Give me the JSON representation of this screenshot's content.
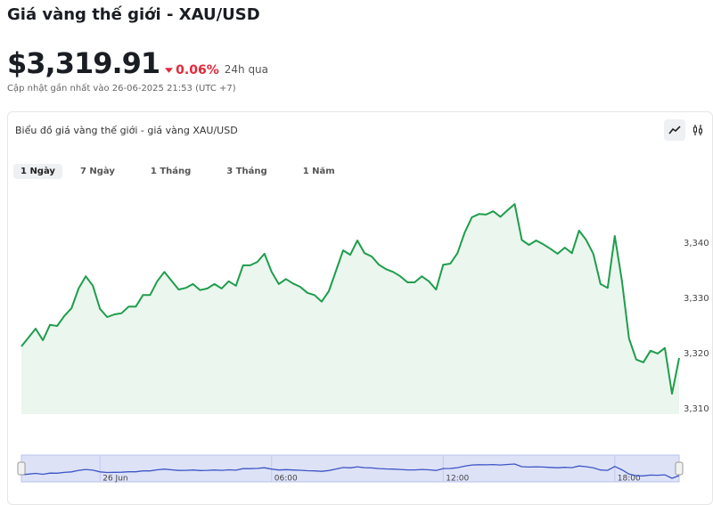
{
  "header": {
    "title": "Giá vàng thế giới - XAU/USD",
    "price": "$3,319.91",
    "change": "0.06%",
    "period": "24h qua",
    "updated": "Cập nhật gần nhất vào 26-06-2025 21:53 (UTC +7)"
  },
  "card": {
    "title": "Biểu đồ giá vàng thế giới - giá vàng XAU/USD",
    "tabs": [
      "1 Ngày",
      "7 Ngày",
      "1 Tháng",
      "3 Tháng",
      "1 Năm"
    ]
  },
  "chart_data": {
    "type": "area",
    "color": "#1f9d4c",
    "fill": "#eaf6ee",
    "navigator_color": "#3d55c4",
    "navigator_fill": "#dde2f7",
    "grid": false,
    "x": [
      -2.75,
      -2.5,
      -2.25,
      -2,
      -1.75,
      -1.5,
      -1.25,
      -1,
      -0.75,
      -0.5,
      -0.25,
      0,
      0.25,
      0.5,
      0.75,
      1,
      1.25,
      1.5,
      1.75,
      2,
      2.25,
      2.5,
      2.75,
      3,
      3.25,
      3.5,
      3.75,
      4,
      4.25,
      4.5,
      4.75,
      5,
      5.25,
      5.5,
      5.75,
      6,
      6.25,
      6.5,
      6.75,
      7,
      7.25,
      7.5,
      7.75,
      8,
      8.25,
      8.5,
      8.75,
      9,
      9.25,
      9.5,
      9.75,
      10,
      10.25,
      10.5,
      10.75,
      11,
      11.25,
      11.5,
      11.75,
      12,
      12.25,
      12.5,
      12.75,
      13,
      13.25,
      13.5,
      13.75,
      14,
      14.25,
      14.5,
      14.75,
      15,
      15.25,
      15.5,
      15.75,
      16,
      16.25,
      16.5,
      16.75,
      17,
      17.25,
      17.5,
      17.75,
      18,
      18.25,
      18.5,
      18.75,
      19,
      19.25,
      19.5,
      19.75,
      20,
      20.25
    ],
    "values": [
      3321.3,
      3322.9,
      3324.5,
      3322.4,
      3325.2,
      3325.0,
      3326.8,
      3328.2,
      3331.8,
      3334.0,
      3332.3,
      3328.1,
      3326.6,
      3327.1,
      3327.3,
      3328.5,
      3328.5,
      3330.6,
      3330.6,
      3333.1,
      3334.8,
      3333.2,
      3331.6,
      3331.9,
      3332.6,
      3331.5,
      3331.8,
      3332.6,
      3331.8,
      3333.1,
      3332.3,
      3336.0,
      3336.0,
      3336.6,
      3338.1,
      3334.8,
      3332.6,
      3333.5,
      3332.7,
      3332.1,
      3331.0,
      3330.6,
      3329.4,
      3331.3,
      3335.0,
      3338.7,
      3337.9,
      3340.5,
      3338.2,
      3337.6,
      3336.1,
      3335.3,
      3334.8,
      3334.0,
      3332.9,
      3332.9,
      3334.0,
      3333.1,
      3331.6,
      3336.1,
      3336.3,
      3338.2,
      3341.9,
      3344.7,
      3345.3,
      3345.2,
      3345.8,
      3344.8,
      3346.0,
      3347.1,
      3340.6,
      3339.7,
      3340.5,
      3339.8,
      3339.0,
      3338.1,
      3339.2,
      3338.2,
      3342.3,
      3340.6,
      3338.1,
      3332.6,
      3331.9,
      3341.3,
      3333.2,
      3322.7,
      3318.9,
      3318.4,
      3320.5,
      3320.0,
      3321.0,
      3312.7,
      3319.2
    ],
    "xlim": [
      -2.75,
      20.25
    ],
    "ylim": [
      3309,
      3351
    ],
    "yticks": [
      {
        "value": 3310,
        "label": "3,310"
      },
      {
        "value": 3320,
        "label": "3,320"
      },
      {
        "value": 3330,
        "label": "3,330"
      },
      {
        "value": 3340,
        "label": "3,340"
      }
    ],
    "xticks": [
      {
        "value": 0,
        "label": "26 Jun"
      },
      {
        "value": 6,
        "label": "06:00"
      },
      {
        "value": 12,
        "label": "12:00"
      },
      {
        "value": 18,
        "label": "18:00"
      }
    ]
  }
}
